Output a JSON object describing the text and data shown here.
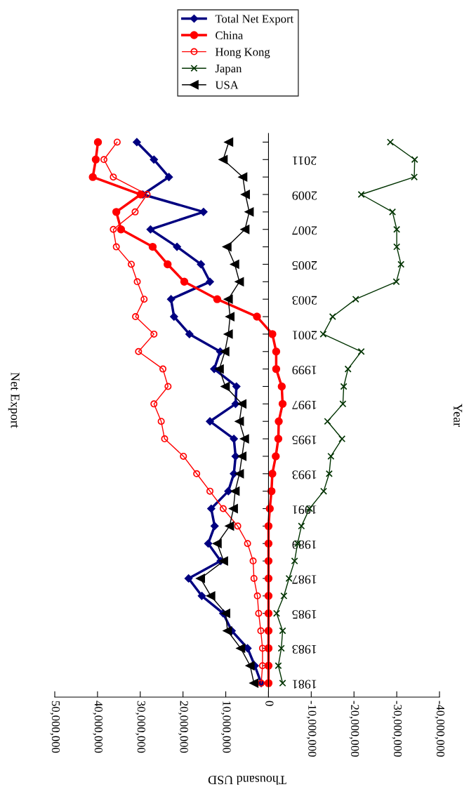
{
  "chart_data": {
    "type": "line",
    "title": "Net Export",
    "xlabel": "Thousand USD",
    "ylabel": "Year",
    "orientation": "horizontal",
    "categories": [
      null,
      "2011",
      null,
      "2009",
      null,
      "2007",
      null,
      "2005",
      null,
      "2003",
      null,
      "2001",
      null,
      "1999",
      null,
      "1997",
      null,
      "1995",
      null,
      "1993",
      null,
      "1991",
      null,
      "1989",
      null,
      "1987",
      null,
      "1985",
      null,
      "1983",
      null,
      "1981"
    ],
    "series": [
      {
        "name": "Total Net Export",
        "color": "#000080",
        "marker": "diamond",
        "values": [
          30800000,
          26800000,
          23300000,
          29400000,
          15200000,
          27600000,
          21400000,
          15800000,
          13700000,
          22800000,
          22100000,
          18500000,
          11300000,
          12700000,
          7500000,
          7700000,
          13700000,
          8100000,
          7700000,
          8100000,
          9400000,
          13400000,
          12600000,
          14100000,
          11200000,
          18700000,
          15600000,
          10600000,
          8600000,
          4900000,
          3200000,
          1700000
        ]
      },
      {
        "name": "China",
        "color": "#ff0000",
        "marker": "circle",
        "values": [
          39900000,
          40400000,
          41100000,
          29900000,
          35600000,
          34500000,
          27100000,
          23600000,
          19700000,
          12000000,
          2700000,
          -900000,
          -1800000,
          -1800000,
          -3100000,
          -3300000,
          -2400000,
          -2300000,
          -1700000,
          -900000,
          -700000,
          -300000,
          0,
          0,
          0,
          0,
          0,
          0,
          0,
          0,
          0,
          0
        ]
      },
      {
        "name": "Hong Kong",
        "color": "#ff0000",
        "marker": "circle-open",
        "values": [
          35400000,
          38500000,
          36300000,
          28400000,
          31200000,
          36300000,
          35600000,
          32100000,
          30700000,
          29100000,
          31100000,
          26800000,
          30400000,
          24700000,
          23500000,
          26800000,
          25100000,
          24300000,
          19900000,
          16800000,
          13700000,
          10600000,
          7200000,
          4900000,
          3600000,
          3400000,
          2600000,
          2300000,
          1800000,
          1400000,
          1400000,
          1700000
        ]
      },
      {
        "name": "Japan",
        "color": "#003300",
        "marker": "cross",
        "values": [
          -28500000,
          -34200000,
          -34100000,
          -21700000,
          -29000000,
          -30000000,
          -30000000,
          -31000000,
          -29900000,
          -20400000,
          -15000000,
          -12800000,
          -21700000,
          -18600000,
          -17600000,
          -17400000,
          -13800000,
          -17200000,
          -14600000,
          -14200000,
          -12900000,
          -9600000,
          -7700000,
          -6800000,
          -6100000,
          -4800000,
          -3600000,
          -1900000,
          -3300000,
          -3000000,
          -2300000,
          -3300000
        ]
      },
      {
        "name": "USA",
        "color": "#000000",
        "marker": "triangle",
        "values": [
          9300000,
          10600000,
          6000000,
          5400000,
          4500000,
          5500000,
          9700000,
          7900000,
          6800000,
          9400000,
          9000000,
          9400000,
          10200000,
          11500000,
          10100000,
          6200000,
          6800000,
          5600000,
          6200000,
          6800000,
          7800000,
          8200000,
          9100000,
          12000000,
          10500000,
          15900000,
          13500000,
          10000000,
          9600000,
          6500000,
          4300000,
          3400000
        ]
      }
    ],
    "xlim": [
      50000000,
      -40000000
    ],
    "xticks": [
      {
        "value": 50000000,
        "label": "50,000,000"
      },
      {
        "value": 40000000,
        "label": "40,000,000"
      },
      {
        "value": 30000000,
        "label": "30,000,000"
      },
      {
        "value": 20000000,
        "label": "20,000,000"
      },
      {
        "value": 10000000,
        "label": "10,000,000"
      },
      0,
      {
        "value": -10000000,
        "label": "-10,000,000"
      },
      {
        "value": -20000000,
        "label": "-20,000,000"
      },
      {
        "value": -30000000,
        "label": "-30,000,000"
      },
      {
        "value": -40000000,
        "label": "-40,000,000"
      }
    ],
    "legend": "top",
    "grid": false
  }
}
